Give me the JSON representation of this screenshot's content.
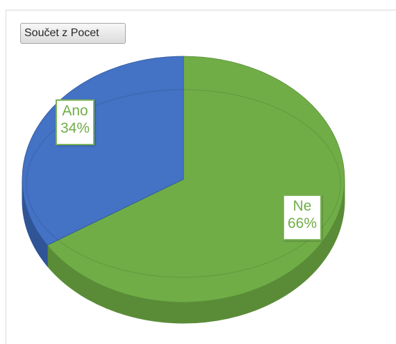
{
  "field_button": {
    "label": "Součet z Pocet"
  },
  "chart_data": {
    "type": "pie",
    "style": "3d",
    "start_angle_deg": 0,
    "direction": "clockwise",
    "slices": [
      {
        "label": "Ne",
        "value": 66,
        "percent_label": "66%",
        "color": "#70ad47",
        "side_color": "#5a8c38"
      },
      {
        "label": "Ano",
        "value": 34,
        "percent_label": "34%",
        "color": "#4472c4",
        "side_color": "#2f5597"
      }
    ],
    "legend": "none",
    "title": ""
  }
}
